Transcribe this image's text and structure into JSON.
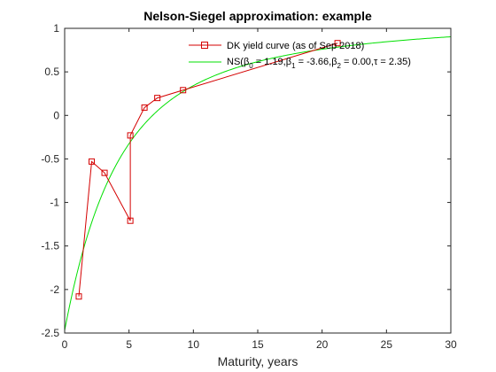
{
  "chart_data": {
    "type": "line",
    "title": "Nelson-Siegel approximation: example",
    "xlabel": "Maturity, years",
    "ylabel": "",
    "xlim": [
      0,
      30
    ],
    "ylim": [
      -2.5,
      1
    ],
    "xticks": [
      0,
      5,
      10,
      15,
      20,
      25,
      30
    ],
    "yticks": [
      -2.5,
      -2,
      -1.5,
      -1,
      -0.5,
      0,
      0.5,
      1
    ],
    "xtick_labels": [
      "0",
      "5",
      "10",
      "15",
      "20",
      "25",
      "30"
    ],
    "ytick_labels": [
      "-2.5",
      "-2",
      "-1.5",
      "-1",
      "-0.5",
      "0",
      "0.5",
      "1"
    ],
    "grid": false,
    "legend_position": "top-right",
    "series": [
      {
        "name": "DK yield curve (as of Sep 2018)",
        "color": "#d40000",
        "marker": "square",
        "x": [
          1.1,
          2.1,
          3.1,
          5.1,
          5.1,
          6.2,
          7.2,
          9.2,
          21.2
        ],
        "y": [
          -2.08,
          -0.53,
          -0.66,
          -1.21,
          -0.23,
          0.09,
          0.2,
          0.29,
          0.83
        ]
      },
      {
        "name": "NS(β0 = 1.19,β1 = -3.66,β2 = 0.00,τ = 2.35)",
        "legend_parts": {
          "prefix": "NS(",
          "b0_sym": "β",
          "b0_sub": "0",
          "b0_val": " = 1.19,",
          "b1_sym": "β",
          "b1_sub": "1",
          "b1_val": " = -3.66,",
          "b2_sym": "β",
          "b2_sub": "2",
          "b2_val": " = 0.00,",
          "tau": "τ = 2.35)"
        },
        "color": "#00e000",
        "marker": "none",
        "params": {
          "beta0": 1.19,
          "beta1": -3.66,
          "beta2": 0.0,
          "tau": 2.35
        },
        "x_range": [
          0,
          30
        ]
      }
    ]
  }
}
